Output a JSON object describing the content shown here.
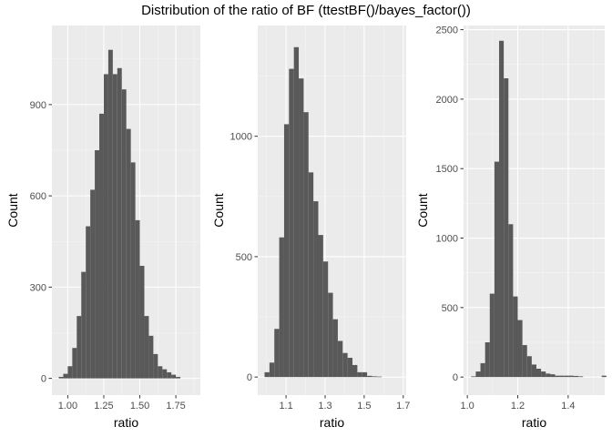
{
  "page_title": "Distribution of the ratio of BF (ttestBF()/bayes_factor())",
  "colors": {
    "panel_bg": "#EBEBEB",
    "grid_major": "#FFFFFF",
    "grid_minor": "#F5F5F5",
    "bar": "#595959",
    "axis_text": "#4D4D4D",
    "axis_title": "#000000"
  },
  "chart_data": [
    {
      "type": "bar",
      "xlabel": "ratio",
      "ylabel": "Count",
      "xlim": [
        0.89,
        1.92
      ],
      "ylim": [
        -55,
        1160
      ],
      "xticks": [
        1.0,
        1.25,
        1.5,
        1.75
      ],
      "xtick_labels": [
        "1.00",
        "1.25",
        "1.50",
        "1.75"
      ],
      "yticks": [
        0,
        300,
        600,
        900
      ],
      "ytick_labels": [
        "0",
        "300",
        "600",
        "900"
      ],
      "bin_start": 0.9375,
      "bin_width": 0.03125,
      "values": [
        5,
        15,
        40,
        100,
        205,
        350,
        500,
        620,
        750,
        870,
        1000,
        1080,
        1000,
        1020,
        950,
        820,
        710,
        520,
        370,
        205,
        140,
        80,
        40,
        30,
        20,
        12,
        5
      ]
    },
    {
      "type": "bar",
      "xlabel": "ratio",
      "ylabel": "Count",
      "xlim": [
        0.955,
        1.715
      ],
      "ylim": [
        -75,
        1460
      ],
      "xticks": [
        1.1,
        1.3,
        1.5,
        1.7
      ],
      "xtick_labels": [
        "1.1",
        "1.3",
        "1.5",
        "1.7"
      ],
      "yticks": [
        0,
        500,
        1000
      ],
      "ytick_labels": [
        "0",
        "500",
        "1000"
      ],
      "bin_start": 0.99,
      "bin_width": 0.025,
      "values": [
        20,
        60,
        200,
        580,
        1050,
        1280,
        1370,
        1240,
        1100,
        850,
        730,
        590,
        480,
        350,
        240,
        150,
        100,
        80,
        50,
        20,
        20,
        5,
        3,
        2
      ]
    },
    {
      "type": "bar",
      "xlabel": "ratio",
      "ylabel": "Count",
      "xlim": [
        0.985,
        1.545
      ],
      "ylim": [
        -130,
        2530
      ],
      "xticks": [
        1.0,
        1.2,
        1.4
      ],
      "xtick_labels": [
        "1.0",
        "1.2",
        "1.4"
      ],
      "yticks": [
        0,
        500,
        1000,
        1500,
        2000,
        2500
      ],
      "ytick_labels": [
        "0",
        "500",
        "1000",
        "1500",
        "2000",
        "2500"
      ],
      "bin_start": 1.015,
      "bin_width": 0.0185,
      "values": [
        5,
        40,
        100,
        250,
        600,
        1550,
        2420,
        2150,
        1100,
        580,
        410,
        230,
        150,
        90,
        60,
        40,
        25,
        20,
        10,
        10,
        10,
        10,
        8,
        5,
        0,
        0,
        0,
        0,
        10
      ]
    }
  ]
}
